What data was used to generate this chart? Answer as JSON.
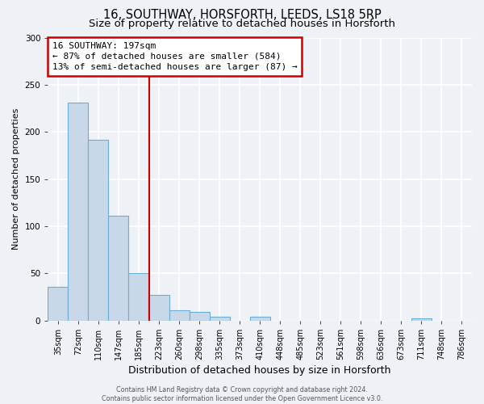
{
  "title": "16, SOUTHWAY, HORSFORTH, LEEDS, LS18 5RP",
  "subtitle": "Size of property relative to detached houses in Horsforth",
  "xlabel": "Distribution of detached houses by size in Horsforth",
  "ylabel": "Number of detached properties",
  "bin_labels": [
    "35sqm",
    "72sqm",
    "110sqm",
    "147sqm",
    "185sqm",
    "223sqm",
    "260sqm",
    "298sqm",
    "335sqm",
    "373sqm",
    "410sqm",
    "448sqm",
    "485sqm",
    "523sqm",
    "561sqm",
    "598sqm",
    "636sqm",
    "673sqm",
    "711sqm",
    "748sqm",
    "786sqm"
  ],
  "bar_heights": [
    36,
    231,
    192,
    111,
    50,
    27,
    11,
    9,
    4,
    0,
    4,
    0,
    0,
    0,
    0,
    0,
    0,
    0,
    2,
    0,
    0
  ],
  "bar_color": "#c8d8e8",
  "bar_edge_color": "#6aaed6",
  "ylim": [
    0,
    300
  ],
  "yticks": [
    0,
    50,
    100,
    150,
    200,
    250,
    300
  ],
  "vline_x_index": 4.54,
  "vline_color": "#cc0000",
  "annotation_title": "16 SOUTHWAY: 197sqm",
  "annotation_line1": "← 87% of detached houses are smaller (584)",
  "annotation_line2": "13% of semi-detached houses are larger (87) →",
  "annotation_box_color": "#cc0000",
  "footer_line1": "Contains HM Land Registry data © Crown copyright and database right 2024.",
  "footer_line2": "Contains public sector information licensed under the Open Government Licence v3.0.",
  "background_color": "#eef2f7",
  "grid_color": "#ffffff",
  "title_fontsize": 10.5,
  "subtitle_fontsize": 9.5,
  "ylabel_fontsize": 8,
  "xlabel_fontsize": 9,
  "tick_fontsize": 7,
  "footer_fontsize": 5.8,
  "annot_fontsize": 8
}
